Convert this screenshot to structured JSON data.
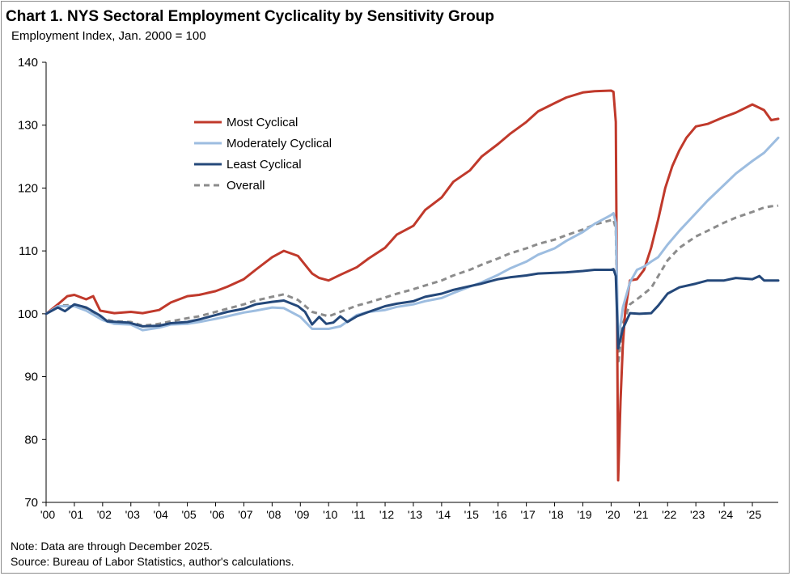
{
  "title": "Chart 1. NYS Sectoral Employment Cyclicality by Sensitivity Group",
  "subtitle": "Employment Index, Jan. 2000 = 100",
  "note": "Note: Data are through December 2025.",
  "source": "Source: Bureau of Labor Statistics, author's calculations.",
  "chart_data": {
    "type": "line",
    "title": "Chart 1. NYS Sectoral Employment Cyclicality by Sensitivity Group",
    "ylabel": "Employment Index, Jan. 2000 = 100",
    "xlabel": "",
    "xlim": [
      "2000-01",
      "2025-12"
    ],
    "ylim": [
      70,
      140
    ],
    "yticks": [
      70,
      80,
      90,
      100,
      110,
      120,
      130,
      140
    ],
    "xtick_labels": [
      "'00",
      "'01",
      "'02",
      "'03",
      "'04",
      "'05",
      "'06",
      "'07",
      "'08",
      "'09",
      "'10",
      "'11",
      "'12",
      "'13",
      "'14",
      "'15",
      "'16",
      "'17",
      "'18",
      "'19",
      "'20",
      "'21",
      "'22",
      "'23",
      "'24",
      "'25"
    ],
    "grid": false,
    "legend_position": "upper-left",
    "series": [
      {
        "name": "Most Cyclical",
        "color": "#c0392b",
        "dash": "solid",
        "points": [
          [
            "2000-01",
            100
          ],
          [
            "2000-06",
            101.5
          ],
          [
            "2000-10",
            102.8
          ],
          [
            "2001-01",
            103
          ],
          [
            "2001-06",
            102.3
          ],
          [
            "2001-09",
            102.8
          ],
          [
            "2001-12",
            100.5
          ],
          [
            "2002-06",
            100.1
          ],
          [
            "2003-01",
            100.3
          ],
          [
            "2003-06",
            100.1
          ],
          [
            "2004-01",
            100.6
          ],
          [
            "2004-06",
            101.8
          ],
          [
            "2005-01",
            102.8
          ],
          [
            "2005-06",
            103
          ],
          [
            "2006-01",
            103.6
          ],
          [
            "2006-06",
            104.3
          ],
          [
            "2007-01",
            105.5
          ],
          [
            "2007-06",
            107
          ],
          [
            "2008-01",
            109
          ],
          [
            "2008-06",
            110
          ],
          [
            "2008-12",
            109.2
          ],
          [
            "2009-06",
            106.4
          ],
          [
            "2009-09",
            105.7
          ],
          [
            "2010-01",
            105.3
          ],
          [
            "2010-06",
            106.2
          ],
          [
            "2011-01",
            107.4
          ],
          [
            "2011-06",
            108.8
          ],
          [
            "2012-01",
            110.5
          ],
          [
            "2012-06",
            112.6
          ],
          [
            "2013-01",
            114
          ],
          [
            "2013-06",
            116.5
          ],
          [
            "2014-01",
            118.5
          ],
          [
            "2014-06",
            121
          ],
          [
            "2015-01",
            122.8
          ],
          [
            "2015-06",
            125
          ],
          [
            "2016-01",
            127
          ],
          [
            "2016-06",
            128.6
          ],
          [
            "2017-01",
            130.5
          ],
          [
            "2017-06",
            132.2
          ],
          [
            "2018-01",
            133.5
          ],
          [
            "2018-06",
            134.4
          ],
          [
            "2019-01",
            135.2
          ],
          [
            "2019-06",
            135.4
          ],
          [
            "2020-01",
            135.5
          ],
          [
            "2020-02",
            135.3
          ],
          [
            "2020-03",
            130.5
          ],
          [
            "2020-04",
            73.5
          ],
          [
            "2020-05",
            86
          ],
          [
            "2020-06",
            95
          ],
          [
            "2020-07",
            100.5
          ],
          [
            "2020-09",
            105.3
          ],
          [
            "2020-12",
            105.5
          ],
          [
            "2021-03",
            107
          ],
          [
            "2021-06",
            110.5
          ],
          [
            "2021-09",
            115
          ],
          [
            "2021-12",
            120
          ],
          [
            "2022-03",
            123.5
          ],
          [
            "2022-06",
            126
          ],
          [
            "2022-09",
            128
          ],
          [
            "2023-01",
            129.8
          ],
          [
            "2023-06",
            130.2
          ],
          [
            "2024-01",
            131.3
          ],
          [
            "2024-06",
            132
          ],
          [
            "2025-01",
            133.3
          ],
          [
            "2025-06",
            132.4
          ],
          [
            "2025-09",
            130.8
          ],
          [
            "2025-12",
            131
          ]
        ]
      },
      {
        "name": "Moderately Cyclical",
        "color": "#9dbde0",
        "dash": "solid",
        "points": [
          [
            "2000-01",
            100
          ],
          [
            "2000-06",
            101.2
          ],
          [
            "2001-01",
            101.2
          ],
          [
            "2001-06",
            100.5
          ],
          [
            "2002-01",
            99
          ],
          [
            "2002-06",
            98.4
          ],
          [
            "2003-01",
            98.3
          ],
          [
            "2003-06",
            97.4
          ],
          [
            "2004-01",
            97.8
          ],
          [
            "2004-06",
            98.3
          ],
          [
            "2005-01",
            98.4
          ],
          [
            "2005-06",
            98.7
          ],
          [
            "2006-01",
            99.2
          ],
          [
            "2006-06",
            99.6
          ],
          [
            "2007-01",
            100.2
          ],
          [
            "2007-06",
            100.5
          ],
          [
            "2008-01",
            101
          ],
          [
            "2008-06",
            100.9
          ],
          [
            "2009-01",
            99.5
          ],
          [
            "2009-06",
            97.6
          ],
          [
            "2010-01",
            97.6
          ],
          [
            "2010-06",
            98
          ],
          [
            "2011-01",
            99.8
          ],
          [
            "2011-06",
            100.3
          ],
          [
            "2012-01",
            100.6
          ],
          [
            "2012-06",
            101.1
          ],
          [
            "2013-01",
            101.5
          ],
          [
            "2013-06",
            102
          ],
          [
            "2014-01",
            102.5
          ],
          [
            "2014-06",
            103.3
          ],
          [
            "2015-01",
            104.3
          ],
          [
            "2015-06",
            105
          ],
          [
            "2016-01",
            106.2
          ],
          [
            "2016-06",
            107.2
          ],
          [
            "2017-01",
            108.3
          ],
          [
            "2017-06",
            109.4
          ],
          [
            "2018-01",
            110.4
          ],
          [
            "2018-06",
            111.6
          ],
          [
            "2019-01",
            113
          ],
          [
            "2019-06",
            114.3
          ],
          [
            "2020-01",
            115.7
          ],
          [
            "2020-02",
            116
          ],
          [
            "2020-03",
            114.5
          ],
          [
            "2020-04",
            95.5
          ],
          [
            "2020-06",
            101
          ],
          [
            "2020-09",
            105
          ],
          [
            "2020-12",
            107
          ],
          [
            "2021-03",
            107.5
          ],
          [
            "2021-06",
            108.3
          ],
          [
            "2021-09",
            109
          ],
          [
            "2022-01",
            111
          ],
          [
            "2022-06",
            113.2
          ],
          [
            "2023-01",
            116
          ],
          [
            "2023-06",
            118
          ],
          [
            "2024-01",
            120.5
          ],
          [
            "2024-06",
            122.3
          ],
          [
            "2025-01",
            124.3
          ],
          [
            "2025-06",
            125.6
          ],
          [
            "2025-12",
            128
          ]
        ]
      },
      {
        "name": "Least Cyclical",
        "color": "#24487a",
        "dash": "solid",
        "points": [
          [
            "2000-01",
            100
          ],
          [
            "2000-06",
            101
          ],
          [
            "2000-09",
            100.4
          ],
          [
            "2001-01",
            101.5
          ],
          [
            "2001-06",
            101
          ],
          [
            "2001-12",
            99.7
          ],
          [
            "2002-03",
            98.8
          ],
          [
            "2002-12",
            98.6
          ],
          [
            "2003-06",
            98
          ],
          [
            "2004-01",
            98.1
          ],
          [
            "2004-06",
            98.5
          ],
          [
            "2005-01",
            98.7
          ],
          [
            "2005-06",
            99.1
          ],
          [
            "2006-01",
            99.8
          ],
          [
            "2006-06",
            100.3
          ],
          [
            "2007-01",
            100.8
          ],
          [
            "2007-06",
            101.5
          ],
          [
            "2008-01",
            101.9
          ],
          [
            "2008-06",
            102.1
          ],
          [
            "2008-12",
            101.2
          ],
          [
            "2009-03",
            100.3
          ],
          [
            "2009-06",
            98.3
          ],
          [
            "2009-09",
            99.5
          ],
          [
            "2009-12",
            98.4
          ],
          [
            "2010-03",
            98.6
          ],
          [
            "2010-06",
            99.6
          ],
          [
            "2010-09",
            98.7
          ],
          [
            "2011-01",
            99.6
          ],
          [
            "2011-06",
            100.3
          ],
          [
            "2012-01",
            101.2
          ],
          [
            "2012-06",
            101.6
          ],
          [
            "2013-01",
            102
          ],
          [
            "2013-06",
            102.7
          ],
          [
            "2014-01",
            103.2
          ],
          [
            "2014-06",
            103.8
          ],
          [
            "2015-01",
            104.4
          ],
          [
            "2015-06",
            104.8
          ],
          [
            "2016-01",
            105.5
          ],
          [
            "2016-06",
            105.8
          ],
          [
            "2017-01",
            106.1
          ],
          [
            "2017-06",
            106.4
          ],
          [
            "2018-01",
            106.5
          ],
          [
            "2018-06",
            106.6
          ],
          [
            "2019-01",
            106.8
          ],
          [
            "2019-06",
            107
          ],
          [
            "2020-01",
            107
          ],
          [
            "2020-02",
            107.1
          ],
          [
            "2020-03",
            106
          ],
          [
            "2020-04",
            94.5
          ],
          [
            "2020-06",
            97.6
          ],
          [
            "2020-09",
            100.1
          ],
          [
            "2021-01",
            100
          ],
          [
            "2021-06",
            100.1
          ],
          [
            "2021-09",
            101.3
          ],
          [
            "2022-01",
            103.2
          ],
          [
            "2022-06",
            104.2
          ],
          [
            "2023-01",
            104.8
          ],
          [
            "2023-06",
            105.3
          ],
          [
            "2024-01",
            105.3
          ],
          [
            "2024-06",
            105.7
          ],
          [
            "2025-01",
            105.5
          ],
          [
            "2025-04",
            106
          ],
          [
            "2025-06",
            105.3
          ],
          [
            "2025-12",
            105.3
          ]
        ]
      },
      {
        "name": "Overall",
        "color": "#8c8c8c",
        "dash": "dashed",
        "points": [
          [
            "2000-01",
            100
          ],
          [
            "2000-06",
            101.3
          ],
          [
            "2001-01",
            101.4
          ],
          [
            "2001-06",
            100.9
          ],
          [
            "2002-01",
            99.2
          ],
          [
            "2002-06",
            98.8
          ],
          [
            "2003-01",
            98.7
          ],
          [
            "2003-06",
            98.1
          ],
          [
            "2004-01",
            98.4
          ],
          [
            "2004-06",
            98.8
          ],
          [
            "2005-01",
            99.3
          ],
          [
            "2005-06",
            99.6
          ],
          [
            "2006-01",
            100.3
          ],
          [
            "2006-06",
            100.8
          ],
          [
            "2007-01",
            101.5
          ],
          [
            "2007-06",
            102.1
          ],
          [
            "2008-01",
            102.7
          ],
          [
            "2008-06",
            103.1
          ],
          [
            "2008-12",
            102.2
          ],
          [
            "2009-06",
            100.3
          ],
          [
            "2010-01",
            99.6
          ],
          [
            "2010-06",
            100.3
          ],
          [
            "2011-01",
            101.3
          ],
          [
            "2011-06",
            101.8
          ],
          [
            "2012-01",
            102.6
          ],
          [
            "2012-06",
            103.2
          ],
          [
            "2013-01",
            103.9
          ],
          [
            "2013-06",
            104.5
          ],
          [
            "2014-01",
            105.3
          ],
          [
            "2014-06",
            106.1
          ],
          [
            "2015-01",
            107
          ],
          [
            "2015-06",
            107.8
          ],
          [
            "2016-01",
            108.8
          ],
          [
            "2016-06",
            109.6
          ],
          [
            "2017-01",
            110.4
          ],
          [
            "2017-06",
            111.1
          ],
          [
            "2018-01",
            111.8
          ],
          [
            "2018-06",
            112.5
          ],
          [
            "2019-01",
            113.4
          ],
          [
            "2019-06",
            114.2
          ],
          [
            "2020-01",
            114.9
          ],
          [
            "2020-02",
            115
          ],
          [
            "2020-03",
            113.5
          ],
          [
            "2020-04",
            92
          ],
          [
            "2020-06",
            98.5
          ],
          [
            "2020-09",
            101.5
          ],
          [
            "2021-01",
            102.6
          ],
          [
            "2021-06",
            104.1
          ],
          [
            "2022-01",
            108.5
          ],
          [
            "2022-06",
            110.5
          ],
          [
            "2023-01",
            112.3
          ],
          [
            "2023-06",
            113.2
          ],
          [
            "2024-01",
            114.5
          ],
          [
            "2024-06",
            115.3
          ],
          [
            "2025-01",
            116.2
          ],
          [
            "2025-06",
            116.9
          ],
          [
            "2025-09",
            117.1
          ],
          [
            "2025-12",
            117.2
          ]
        ]
      }
    ]
  }
}
